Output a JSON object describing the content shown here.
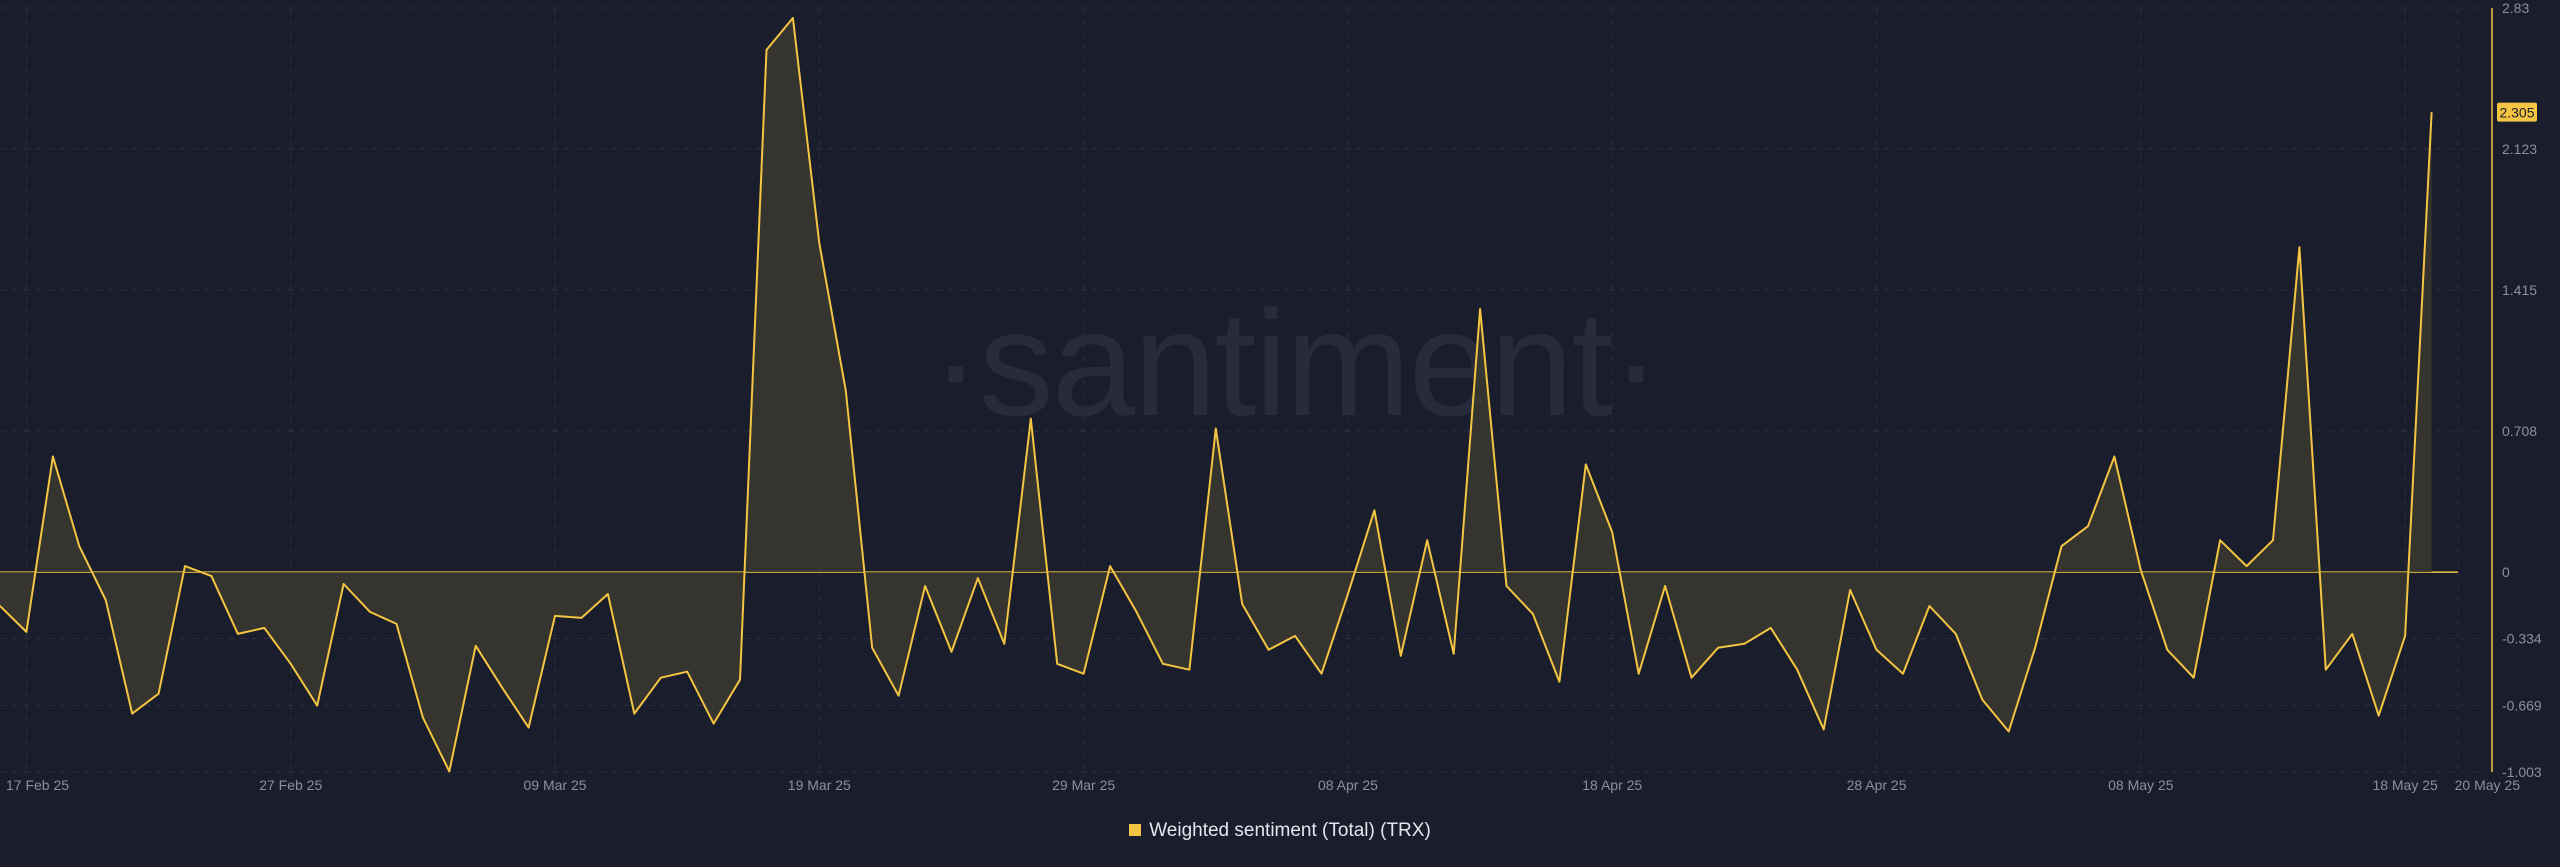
{
  "chart_data": {
    "type": "area",
    "watermark": "·santiment·",
    "legend": "Weighted sentiment (Total) (TRX)",
    "legend_placement": "bottom-center",
    "line_color": "#f4c542",
    "fill_color": "#3c382f",
    "background": "#1a1d2b",
    "last_value_label": "2.305",
    "x_start": "2025-02-16",
    "x_end": "2025-05-20",
    "x_ticks": [
      {
        "date": "2025-02-17",
        "label": "17 Feb 25"
      },
      {
        "date": "2025-02-27",
        "label": "27 Feb 25"
      },
      {
        "date": "2025-03-09",
        "label": "09 Mar 25"
      },
      {
        "date": "2025-03-19",
        "label": "19 Mar 25"
      },
      {
        "date": "2025-03-29",
        "label": "29 Mar 25"
      },
      {
        "date": "2025-04-08",
        "label": "08 Apr 25"
      },
      {
        "date": "2025-04-18",
        "label": "18 Apr 25"
      },
      {
        "date": "2025-04-28",
        "label": "28 Apr 25"
      },
      {
        "date": "2025-05-08",
        "label": "08 May 25"
      },
      {
        "date": "2025-05-18",
        "label": "18 May 25"
      },
      {
        "date": "2025-05-20",
        "label": "20 May 25"
      }
    ],
    "y_range": [
      -1.003,
      2.83
    ],
    "y_ticks": [
      {
        "value": 2.83,
        "label": "2.83"
      },
      {
        "value": 2.123,
        "label": "2.123"
      },
      {
        "value": 1.415,
        "label": "1.415"
      },
      {
        "value": 0.708,
        "label": "0.708"
      },
      {
        "value": 0,
        "label": "0"
      },
      {
        "value": -0.334,
        "label": "-0.334"
      },
      {
        "value": -0.669,
        "label": "-0.669"
      },
      {
        "value": -1.003,
        "label": "-1.003"
      }
    ],
    "grid": true,
    "series": [
      {
        "values": [
          [
            "2025-02-16",
            -0.17
          ],
          [
            "2025-02-17",
            -0.3
          ],
          [
            "2025-02-18",
            0.58
          ],
          [
            "2025-02-19",
            0.13
          ],
          [
            "2025-02-20",
            -0.14
          ],
          [
            "2025-02-21",
            -0.71
          ],
          [
            "2025-02-22",
            -0.61
          ],
          [
            "2025-02-23",
            0.03
          ],
          [
            "2025-02-24",
            -0.02
          ],
          [
            "2025-02-25",
            -0.31
          ],
          [
            "2025-02-26",
            -0.28
          ],
          [
            "2025-02-27",
            -0.46
          ],
          [
            "2025-02-28",
            -0.67
          ],
          [
            "2025-03-01",
            -0.06
          ],
          [
            "2025-03-02",
            -0.2
          ],
          [
            "2025-03-03",
            -0.26
          ],
          [
            "2025-03-04",
            -0.73
          ],
          [
            "2025-03-05",
            -1.0
          ],
          [
            "2025-03-06",
            -0.37
          ],
          [
            "2025-03-07",
            -0.58
          ],
          [
            "2025-03-08",
            -0.78
          ],
          [
            "2025-03-09",
            -0.22
          ],
          [
            "2025-03-10",
            -0.23
          ],
          [
            "2025-03-11",
            -0.11
          ],
          [
            "2025-03-12",
            -0.71
          ],
          [
            "2025-03-13",
            -0.53
          ],
          [
            "2025-03-14",
            -0.5
          ],
          [
            "2025-03-15",
            -0.76
          ],
          [
            "2025-03-16",
            -0.54
          ],
          [
            "2025-03-17",
            2.62
          ],
          [
            "2025-03-18",
            2.78
          ],
          [
            "2025-03-19",
            1.65
          ],
          [
            "2025-03-20",
            0.91
          ],
          [
            "2025-03-21",
            -0.38
          ],
          [
            "2025-03-22",
            -0.62
          ],
          [
            "2025-03-23",
            -0.07
          ],
          [
            "2025-03-24",
            -0.4
          ],
          [
            "2025-03-25",
            -0.03
          ],
          [
            "2025-03-26",
            -0.36
          ],
          [
            "2025-03-27",
            0.77
          ],
          [
            "2025-03-28",
            -0.46
          ],
          [
            "2025-03-29",
            -0.51
          ],
          [
            "2025-03-30",
            0.03
          ],
          [
            "2025-03-31",
            -0.2
          ],
          [
            "2025-04-01",
            -0.46
          ],
          [
            "2025-04-02",
            -0.49
          ],
          [
            "2025-04-03",
            0.72
          ],
          [
            "2025-04-04",
            -0.16
          ],
          [
            "2025-04-05",
            -0.39
          ],
          [
            "2025-04-06",
            -0.32
          ],
          [
            "2025-04-07",
            -0.51
          ],
          [
            "2025-04-08",
            -0.11
          ],
          [
            "2025-04-09",
            0.31
          ],
          [
            "2025-04-10",
            -0.42
          ],
          [
            "2025-04-11",
            0.16
          ],
          [
            "2025-04-12",
            -0.41
          ],
          [
            "2025-04-13",
            1.32
          ],
          [
            "2025-04-14",
            -0.07
          ],
          [
            "2025-04-15",
            -0.21
          ],
          [
            "2025-04-16",
            -0.55
          ],
          [
            "2025-04-17",
            0.54
          ],
          [
            "2025-04-18",
            0.2
          ],
          [
            "2025-04-19",
            -0.51
          ],
          [
            "2025-04-20",
            -0.07
          ],
          [
            "2025-04-21",
            -0.53
          ],
          [
            "2025-04-22",
            -0.38
          ],
          [
            "2025-04-23",
            -0.36
          ],
          [
            "2025-04-24",
            -0.28
          ],
          [
            "2025-04-25",
            -0.49
          ],
          [
            "2025-04-26",
            -0.79
          ],
          [
            "2025-04-27",
            -0.09
          ],
          [
            "2025-04-28",
            -0.39
          ],
          [
            "2025-04-29",
            -0.51
          ],
          [
            "2025-04-30",
            -0.17
          ],
          [
            "2025-05-01",
            -0.31
          ],
          [
            "2025-05-02",
            -0.64
          ],
          [
            "2025-05-03",
            -0.8
          ],
          [
            "2025-05-04",
            -0.38
          ],
          [
            "2025-05-05",
            0.13
          ],
          [
            "2025-05-06",
            0.23
          ],
          [
            "2025-05-07",
            0.58
          ],
          [
            "2025-05-08",
            0.01
          ],
          [
            "2025-05-09",
            -0.39
          ],
          [
            "2025-05-10",
            -0.53
          ],
          [
            "2025-05-11",
            0.16
          ],
          [
            "2025-05-12",
            0.03
          ],
          [
            "2025-05-13",
            0.16
          ],
          [
            "2025-05-14",
            1.63
          ],
          [
            "2025-05-15",
            -0.49
          ],
          [
            "2025-05-16",
            -0.31
          ],
          [
            "2025-05-17",
            -0.72
          ],
          [
            "2025-05-18",
            -0.32
          ],
          [
            "2025-05-19",
            2.305
          ]
        ]
      }
    ]
  }
}
